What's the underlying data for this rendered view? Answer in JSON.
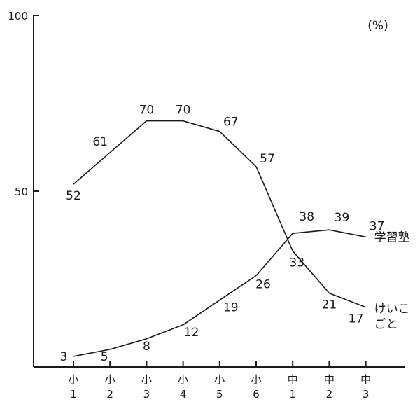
{
  "chart_data": {
    "type": "line",
    "unit": "(%)",
    "ylim": [
      0,
      100
    ],
    "yticks": [
      {
        "value": 100,
        "label": "100"
      },
      {
        "value": 50,
        "label": "50"
      }
    ],
    "categories": [
      {
        "top": "小",
        "bottom": "1"
      },
      {
        "top": "小",
        "bottom": "2"
      },
      {
        "top": "小",
        "bottom": "3"
      },
      {
        "top": "小",
        "bottom": "4"
      },
      {
        "top": "小",
        "bottom": "5"
      },
      {
        "top": "小",
        "bottom": "6"
      },
      {
        "top": "中",
        "bottom": "1"
      },
      {
        "top": "中",
        "bottom": "2"
      },
      {
        "top": "中",
        "bottom": "3"
      }
    ],
    "series": [
      {
        "name": "けいこごと",
        "name_lines": [
          "けいこ",
          "ごと"
        ],
        "values": [
          52,
          61,
          70,
          70,
          67,
          57,
          33,
          21,
          17
        ]
      },
      {
        "name": "学習塾",
        "name_lines": [
          "学習塾"
        ],
        "values": [
          3,
          5,
          8,
          12,
          19,
          26,
          38,
          39,
          37
        ]
      }
    ],
    "grid": false,
    "legend": "inline-right"
  }
}
